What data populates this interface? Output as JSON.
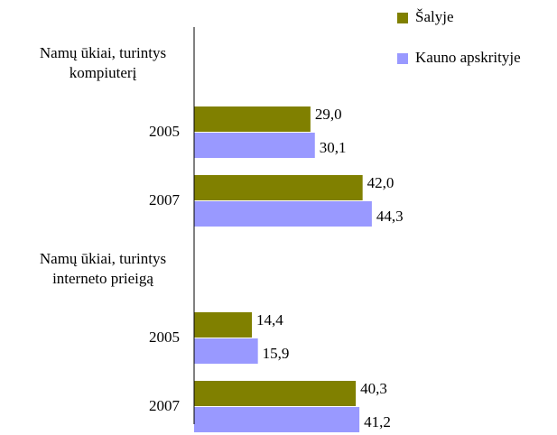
{
  "chart_data": {
    "type": "bar",
    "orientation": "horizontal",
    "categories": [
      "Namų ūkiai, turintys kompiuterį",
      "2005",
      "2007",
      "Namų ūkiai, turintys interneto prieigą",
      "2005",
      "2007"
    ],
    "series": [
      {
        "name": "Šalyje",
        "color": "#808000",
        "values": [
          null,
          29.0,
          42.0,
          null,
          14.4,
          40.3
        ],
        "value_labels": [
          null,
          "29,0",
          "42,0",
          null,
          "14,4",
          "40,3"
        ]
      },
      {
        "name": "Kauno apskrityje",
        "color": "#9999ff",
        "values": [
          null,
          30.1,
          44.3,
          null,
          15.9,
          41.2
        ],
        "value_labels": [
          null,
          "30,1",
          "44,3",
          null,
          "15,9",
          "41,2"
        ]
      }
    ],
    "xlim": [
      0,
      90
    ],
    "legend": "upper right"
  }
}
